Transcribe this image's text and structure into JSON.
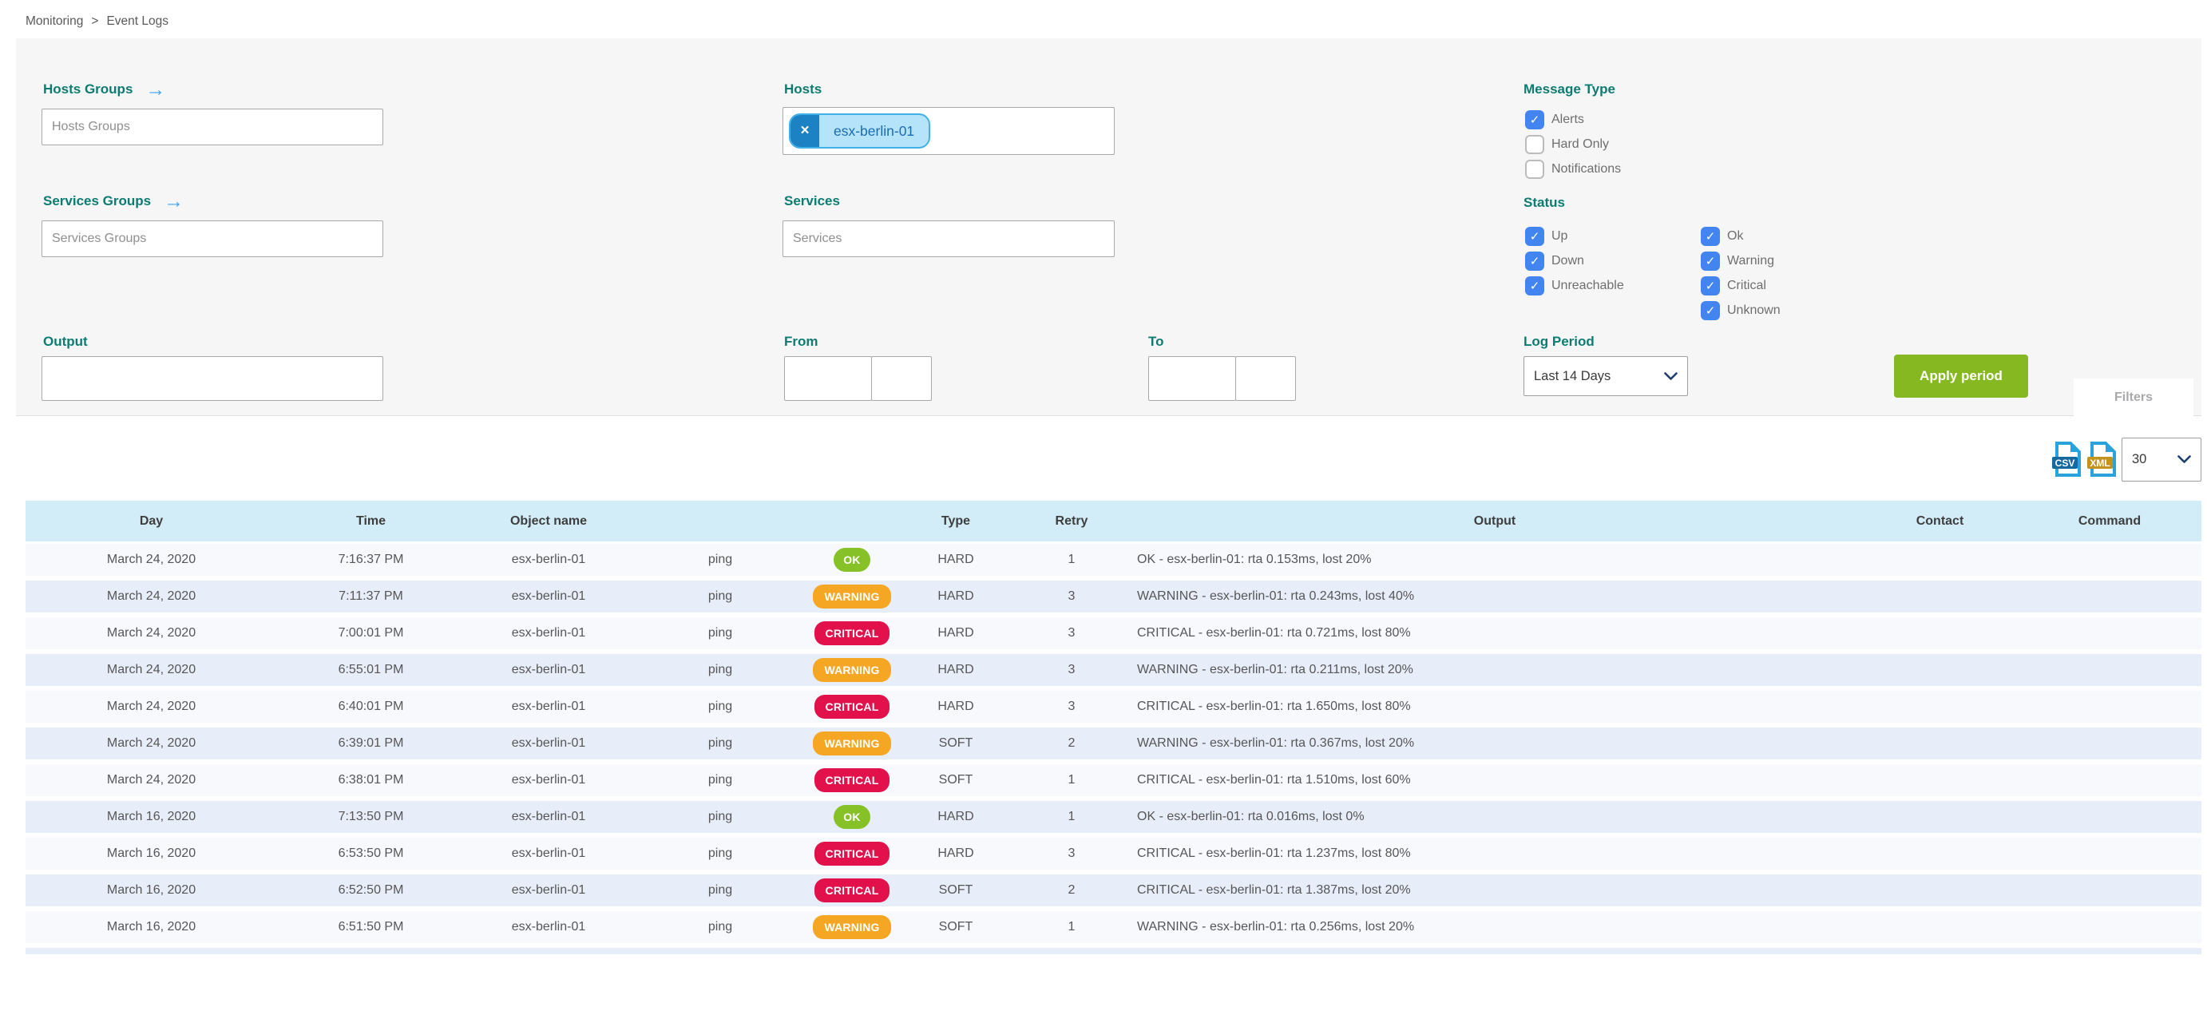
{
  "breadcrumb": {
    "section": "Monitoring",
    "separator": ">",
    "page": "Event Logs"
  },
  "filters": {
    "hosts_groups": {
      "label": "Hosts Groups",
      "placeholder": "Hosts Groups"
    },
    "services_groups": {
      "label": "Services Groups",
      "placeholder": "Services Groups"
    },
    "hosts": {
      "label": "Hosts",
      "chips": [
        "esx-berlin-01"
      ],
      "remove_glyph": "×"
    },
    "services": {
      "label": "Services",
      "placeholder": "Services"
    },
    "output": {
      "label": "Output",
      "value": ""
    },
    "from": {
      "label": "From",
      "date": "",
      "time": ""
    },
    "to": {
      "label": "To",
      "date": "",
      "time": ""
    },
    "log_period": {
      "label": "Log Period",
      "selected": "Last 14 Days"
    },
    "apply_button": "Apply period",
    "filters_tab": "Filters",
    "message_type": {
      "label": "Message Type",
      "options": [
        {
          "label": "Alerts",
          "checked": true
        },
        {
          "label": "Hard Only",
          "checked": false
        },
        {
          "label": "Notifications",
          "checked": false
        }
      ]
    },
    "status": {
      "label": "Status",
      "col1": [
        {
          "label": "Up",
          "checked": true
        },
        {
          "label": "Down",
          "checked": true
        },
        {
          "label": "Unreachable",
          "checked": true
        }
      ],
      "col2": [
        {
          "label": "Ok",
          "checked": true
        },
        {
          "label": "Warning",
          "checked": true
        },
        {
          "label": "Critical",
          "checked": true
        },
        {
          "label": "Unknown",
          "checked": true
        }
      ]
    }
  },
  "toolbar": {
    "csv_label": "CSV",
    "xml_label": "XML",
    "page_size": "30"
  },
  "table": {
    "columns": [
      "Day",
      "Time",
      "Object name",
      "",
      "",
      "Type",
      "Retry",
      "Output",
      "Contact",
      "Command"
    ],
    "rows": [
      {
        "day": "March 24, 2020",
        "time": "7:16:37 PM",
        "object": "esx-berlin-01",
        "service": "ping",
        "status": "OK",
        "type": "HARD",
        "retry": "1",
        "output": "OK - esx-berlin-01: rta 0.153ms, lost 20%",
        "contact": "",
        "command": ""
      },
      {
        "day": "March 24, 2020",
        "time": "7:11:37 PM",
        "object": "esx-berlin-01",
        "service": "ping",
        "status": "WARNING",
        "type": "HARD",
        "retry": "3",
        "output": "WARNING - esx-berlin-01: rta 0.243ms, lost 40%",
        "contact": "",
        "command": ""
      },
      {
        "day": "March 24, 2020",
        "time": "7:00:01 PM",
        "object": "esx-berlin-01",
        "service": "ping",
        "status": "CRITICAL",
        "type": "HARD",
        "retry": "3",
        "output": "CRITICAL - esx-berlin-01: rta 0.721ms, lost 80%",
        "contact": "",
        "command": ""
      },
      {
        "day": "March 24, 2020",
        "time": "6:55:01 PM",
        "object": "esx-berlin-01",
        "service": "ping",
        "status": "WARNING",
        "type": "HARD",
        "retry": "3",
        "output": "WARNING - esx-berlin-01: rta 0.211ms, lost 20%",
        "contact": "",
        "command": ""
      },
      {
        "day": "March 24, 2020",
        "time": "6:40:01 PM",
        "object": "esx-berlin-01",
        "service": "ping",
        "status": "CRITICAL",
        "type": "HARD",
        "retry": "3",
        "output": "CRITICAL - esx-berlin-01: rta 1.650ms, lost 80%",
        "contact": "",
        "command": ""
      },
      {
        "day": "March 24, 2020",
        "time": "6:39:01 PM",
        "object": "esx-berlin-01",
        "service": "ping",
        "status": "WARNING",
        "type": "SOFT",
        "retry": "2",
        "output": "WARNING - esx-berlin-01: rta 0.367ms, lost 20%",
        "contact": "",
        "command": ""
      },
      {
        "day": "March 24, 2020",
        "time": "6:38:01 PM",
        "object": "esx-berlin-01",
        "service": "ping",
        "status": "CRITICAL",
        "type": "SOFT",
        "retry": "1",
        "output": "CRITICAL - esx-berlin-01: rta 1.510ms, lost 60%",
        "contact": "",
        "command": ""
      },
      {
        "day": "March 16, 2020",
        "time": "7:13:50 PM",
        "object": "esx-berlin-01",
        "service": "ping",
        "status": "OK",
        "type": "HARD",
        "retry": "1",
        "output": "OK - esx-berlin-01: rta 0.016ms, lost 0%",
        "contact": "",
        "command": ""
      },
      {
        "day": "March 16, 2020",
        "time": "6:53:50 PM",
        "object": "esx-berlin-01",
        "service": "ping",
        "status": "CRITICAL",
        "type": "HARD",
        "retry": "3",
        "output": "CRITICAL - esx-berlin-01: rta 1.237ms, lost 80%",
        "contact": "",
        "command": ""
      },
      {
        "day": "March 16, 2020",
        "time": "6:52:50 PM",
        "object": "esx-berlin-01",
        "service": "ping",
        "status": "CRITICAL",
        "type": "SOFT",
        "retry": "2",
        "output": "CRITICAL - esx-berlin-01: rta 1.387ms, lost 20%",
        "contact": "",
        "command": ""
      },
      {
        "day": "March 16, 2020",
        "time": "6:51:50 PM",
        "object": "esx-berlin-01",
        "service": "ping",
        "status": "WARNING",
        "type": "SOFT",
        "retry": "1",
        "output": "WARNING - esx-berlin-01: rta 0.256ms, lost 20%",
        "contact": "",
        "command": ""
      }
    ]
  },
  "colors": {
    "label_teal": "#0d7c70",
    "checkbox_blue": "#4385f0",
    "apply_green": "#85b821",
    "header_blue": "#d2ecf8",
    "row_light": "#f7f9fd",
    "row_dark": "#e8edfa",
    "status_ok": "#86c127",
    "status_warning": "#f5a623",
    "status_critical": "#e2114b",
    "chip_bg": "#b5e3fa",
    "chip_border": "#41b0e6"
  }
}
